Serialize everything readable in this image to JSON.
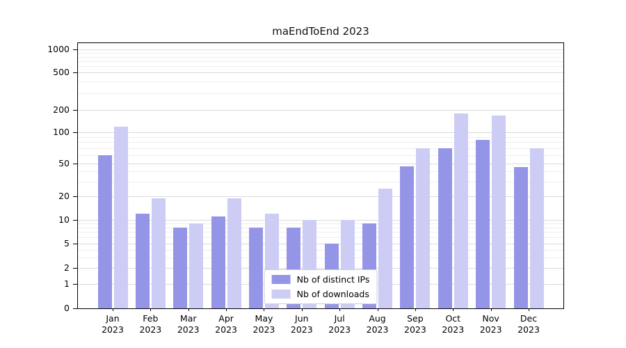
{
  "chart_data": {
    "type": "bar",
    "title": "maEndToEnd 2023",
    "scale": "symlog",
    "grid": true,
    "legend_position": "lower center",
    "months": [
      "Jan",
      "Feb",
      "Mar",
      "Apr",
      "May",
      "Jun",
      "Jul",
      "Aug",
      "Sep",
      "Oct",
      "Nov",
      "Dec"
    ],
    "year": "2023",
    "categories": [
      "Jan 2023",
      "Feb 2023",
      "Mar 2023",
      "Apr 2023",
      "May 2023",
      "Jun 2023",
      "Jul 2023",
      "Aug 2023",
      "Sep 2023",
      "Oct 2023",
      "Nov 2023",
      "Dec 2023"
    ],
    "series": [
      {
        "name": "Nb of distinct IPs",
        "color": "#9595e8",
        "values": [
          60,
          12,
          8,
          11,
          8,
          8,
          5,
          9,
          46,
          70,
          85,
          45
        ]
      },
      {
        "name": "Nb of downloads",
        "color": "#cdccf4",
        "values": [
          120,
          19,
          9,
          19,
          12,
          10,
          10,
          25,
          70,
          180,
          170,
          70
        ]
      }
    ],
    "y_ticks": [
      0,
      1,
      2,
      5,
      10,
      20,
      50,
      100,
      200,
      500,
      1000
    ],
    "ylim": [
      0,
      1000
    ],
    "xlabel": "",
    "ylabel": ""
  }
}
